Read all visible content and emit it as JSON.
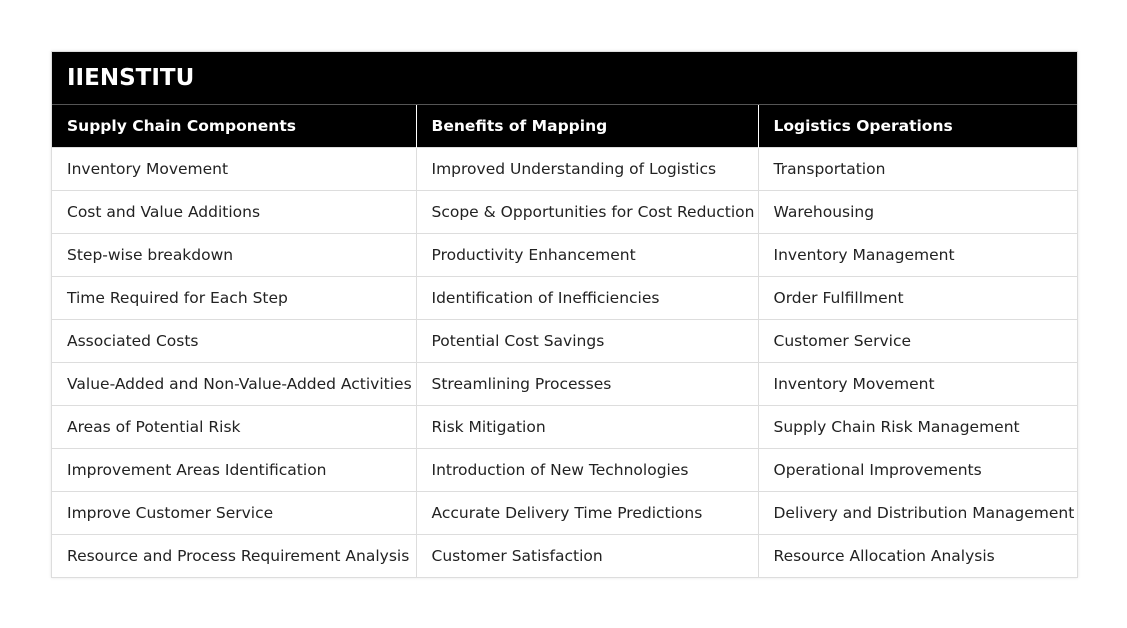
{
  "header": {
    "title": "IIENSTITU"
  },
  "table": {
    "columns": [
      "Supply Chain Components",
      "Benefits of Mapping",
      "Logistics Operations"
    ],
    "rows": [
      [
        "Inventory Movement",
        "Improved Understanding of Logistics",
        "Transportation"
      ],
      [
        "Cost and Value Additions",
        "Scope & Opportunities for Cost Reduction",
        "Warehousing"
      ],
      [
        "Step-wise breakdown",
        "Productivity Enhancement",
        "Inventory Management"
      ],
      [
        "Time Required for Each Step",
        "Identification of Inefficiencies",
        "Order Fulfillment"
      ],
      [
        "Associated Costs",
        "Potential Cost Savings",
        "Customer Service"
      ],
      [
        "Value-Added and Non-Value-Added Activities",
        "Streamlining Processes",
        "Inventory Movement"
      ],
      [
        "Areas of Potential Risk",
        "Risk Mitigation",
        "Supply Chain Risk Management"
      ],
      [
        "Improvement Areas Identification",
        "Introduction of New Technologies",
        "Operational Improvements"
      ],
      [
        "Improve Customer Service",
        "Accurate Delivery Time Predictions",
        "Delivery and Distribution Management"
      ],
      [
        "Resource and Process Requirement Analysis",
        "Customer Satisfaction",
        "Resource Allocation Analysis"
      ]
    ]
  }
}
